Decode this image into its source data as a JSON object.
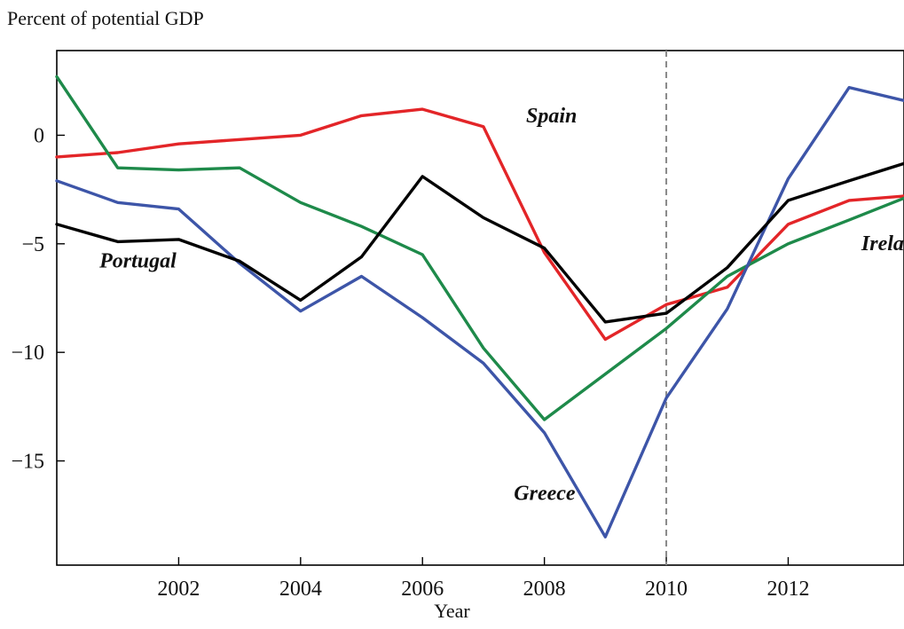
{
  "chart_data": {
    "type": "line",
    "ylabel": "Percent of potential GDP",
    "xlabel": "Year",
    "xlim": [
      2000,
      2013.9
    ],
    "ylim": [
      -19.8,
      3.9
    ],
    "x_ticks": [
      2002,
      2004,
      2006,
      2008,
      2010,
      2012
    ],
    "y_ticks": [
      0,
      -5,
      -10,
      -15
    ],
    "y_tick_labels": [
      "0",
      "-5",
      "-10",
      "-15"
    ],
    "reference_line": {
      "x": 2010,
      "style": "dashed",
      "color": "#888888"
    },
    "grid": false,
    "x": [
      2000,
      2001,
      2002,
      2003,
      2004,
      2005,
      2006,
      2007,
      2008,
      2009,
      2010,
      2011,
      2012,
      2013,
      2013.9
    ],
    "series": [
      {
        "name": "Spain",
        "color": "#e32528",
        "values": [
          -1.0,
          -0.8,
          -0.4,
          -0.2,
          0.0,
          0.9,
          1.2,
          0.4,
          -5.4,
          -9.4,
          -7.8,
          -7.0,
          -4.1,
          -3.0,
          -2.8
        ]
      },
      {
        "name": "Ireland",
        "color": "#1e8a4a",
        "values": [
          2.7,
          -1.5,
          -1.6,
          -1.5,
          -3.1,
          -4.2,
          -5.5,
          -9.8,
          -13.1,
          -11.0,
          -8.9,
          -6.5,
          -5.0,
          -3.9,
          -2.9
        ]
      },
      {
        "name": "Greece",
        "color": "#3d55a8",
        "values": [
          -2.1,
          -3.1,
          -3.4,
          -5.9,
          -8.1,
          -6.5,
          -8.4,
          -10.5,
          -13.7,
          -18.5,
          -12.1,
          -8.0,
          -2.0,
          2.2,
          1.6
        ]
      },
      {
        "name": "Portugal",
        "color": "#000000",
        "values": [
          -4.1,
          -4.9,
          -4.8,
          -5.8,
          -7.6,
          -5.6,
          -1.9,
          -3.8,
          -5.2,
          -8.6,
          -8.2,
          -6.1,
          -3.0,
          -2.1,
          -1.3
        ]
      }
    ],
    "annotations": [
      {
        "text": "Spain",
        "series": "Spain",
        "x": 2007.7,
        "y": 0.6
      },
      {
        "text": "Ireland",
        "series": "Ireland",
        "x": 2013.2,
        "y": -5.3
      },
      {
        "text": "Greece",
        "series": "Greece",
        "x": 2007.5,
        "y": -16.8
      },
      {
        "text": "Portugal",
        "series": "Portugal",
        "x": 2000.7,
        "y": -6.1
      }
    ]
  }
}
